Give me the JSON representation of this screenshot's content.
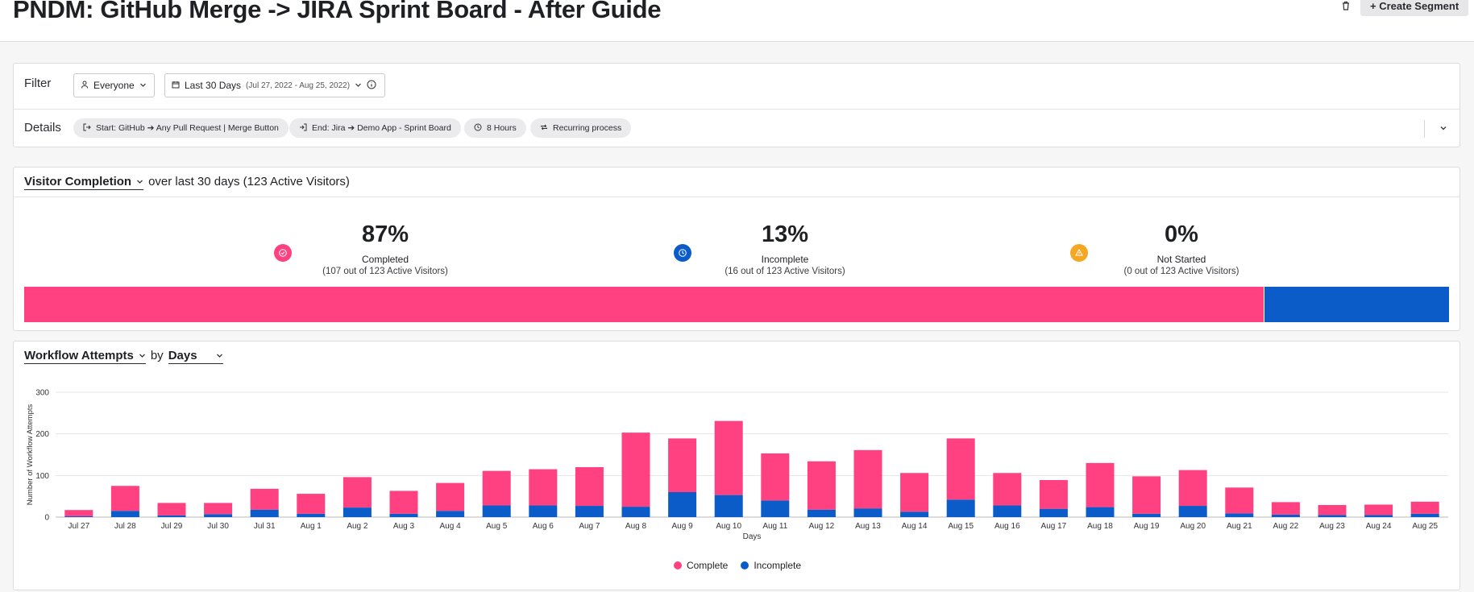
{
  "header": {
    "title": "PNDM: GitHub Merge -> JIRA Sprint Board - After Guide",
    "create_segment_label": "+ Create Segment"
  },
  "filter": {
    "label": "Filter",
    "segment": "Everyone",
    "date_range": "Last 30 Days",
    "date_range_detail": "(Jul 27, 2022 - Aug 25, 2022)"
  },
  "details": {
    "label": "Details",
    "chips": [
      {
        "icon": "start-icon",
        "label": "Start: GitHub ➔ Any Pull Request | Merge Button"
      },
      {
        "icon": "end-icon",
        "label": "End: Jira ➔ Demo App - Sprint Board"
      },
      {
        "icon": "clock-icon",
        "label": "8 Hours"
      },
      {
        "icon": "repeat-icon",
        "label": "Recurring process"
      }
    ]
  },
  "completion": {
    "title": "Visitor Completion",
    "subtitle": "over last 30 days (123 Active Visitors)",
    "stats": [
      {
        "value": "87%",
        "label": "Completed",
        "sub": "(107 out of 123 Active Visitors)",
        "color": "#ff4081",
        "icon": "check-circle-icon"
      },
      {
        "value": "13%",
        "label": "Incomplete",
        "sub": "(16 out of 123 Active Visitors)",
        "color": "#0b5cc9",
        "icon": "clock-icon"
      },
      {
        "value": "0%",
        "label": "Not Started",
        "sub": "(0 out of 123 Active Visitors)",
        "color": "#f5a623",
        "icon": "warning-icon"
      }
    ],
    "bar": [
      {
        "name": "Completed",
        "fraction": 0.87,
        "color": "#ff4081"
      },
      {
        "name": "Incomplete",
        "fraction": 0.13,
        "color": "#0b5cc9"
      }
    ]
  },
  "workflow": {
    "title": "Workflow Attempts",
    "by_label": "by",
    "granularity": "Days"
  },
  "chart_data": {
    "type": "bar",
    "stacked": true,
    "categories": [
      "Jul 27",
      "Jul 28",
      "Jul 29",
      "Jul 30",
      "Jul 31",
      "Aug 1",
      "Aug 2",
      "Aug 3",
      "Aug 4",
      "Aug 5",
      "Aug 6",
      "Aug 7",
      "Aug 8",
      "Aug 9",
      "Aug 10",
      "Aug 11",
      "Aug 12",
      "Aug 13",
      "Aug 14",
      "Aug 15",
      "Aug 16",
      "Aug 17",
      "Aug 18",
      "Aug 19",
      "Aug 20",
      "Aug 21",
      "Aug 22",
      "Aug 23",
      "Aug 24",
      "Aug 25"
    ],
    "series": [
      {
        "name": "Incomplete",
        "color": "#0b5cc9",
        "values": [
          2,
          15,
          4,
          7,
          18,
          8,
          23,
          8,
          15,
          28,
          28,
          27,
          25,
          60,
          53,
          40,
          18,
          21,
          13,
          42,
          28,
          20,
          24,
          8,
          27,
          9,
          6,
          5,
          5,
          8
        ]
      },
      {
        "name": "Complete",
        "color": "#ff4081",
        "values": [
          15,
          60,
          30,
          27,
          50,
          48,
          73,
          55,
          67,
          83,
          87,
          93,
          178,
          129,
          178,
          113,
          116,
          140,
          93,
          147,
          78,
          69,
          106,
          90,
          86,
          62,
          30,
          24,
          25,
          29
        ]
      }
    ],
    "xlabel": "Days",
    "ylabel": "Number of Workflow Attempts",
    "yticks": [
      0,
      100,
      200,
      300
    ],
    "ylim": [
      0,
      300
    ],
    "grid": true,
    "legend": "bottom-center"
  }
}
